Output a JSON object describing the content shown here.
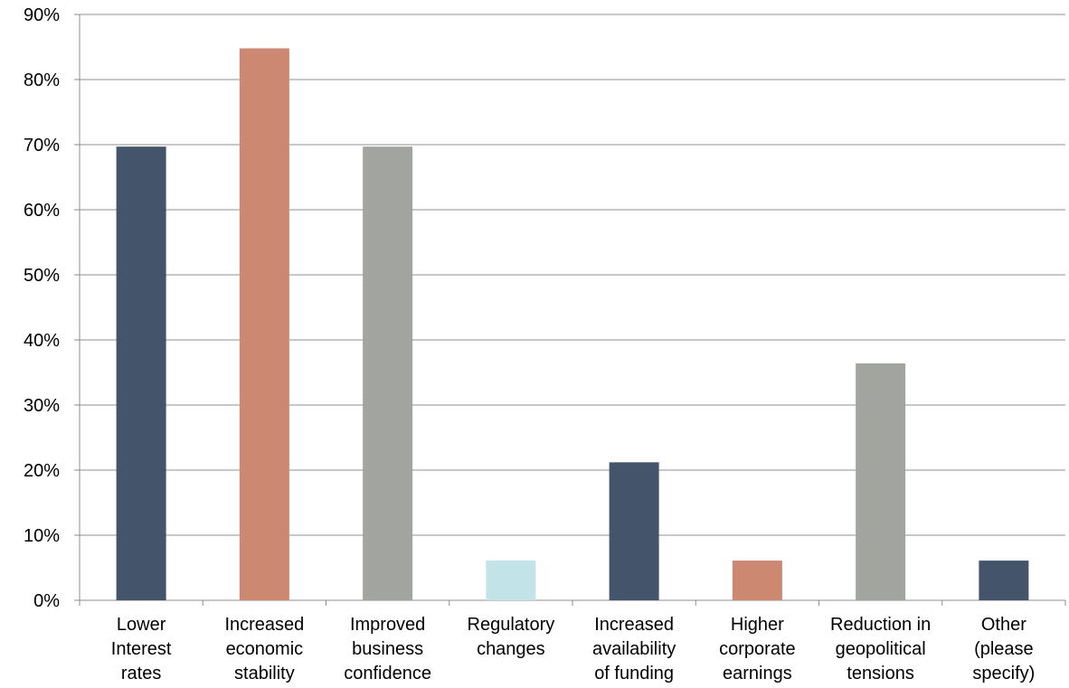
{
  "chart_data": {
    "type": "bar",
    "title": "",
    "xlabel": "",
    "ylabel": "",
    "categories": [
      [
        "Lower",
        "Interest",
        "rates"
      ],
      [
        "Increased",
        "economic",
        "stability"
      ],
      [
        "Improved",
        "business",
        "confidence"
      ],
      [
        "Regulatory",
        "changes"
      ],
      [
        "Increased",
        "availability",
        "of funding"
      ],
      [
        "Higher",
        "corporate",
        "earnings"
      ],
      [
        "Reduction in",
        "geopolitical",
        "tensions"
      ],
      [
        "Other",
        "(please",
        "specify)"
      ]
    ],
    "values": [
      69.7,
      84.8,
      69.7,
      6.1,
      21.2,
      6.1,
      36.4,
      6.1
    ],
    "bar_colors": [
      "#44546a",
      "#cc8870",
      "#a2a4a0",
      "#c2e3e8",
      "#44546a",
      "#cc8870",
      "#a2a4a0",
      "#44546a"
    ],
    "ylim": [
      0,
      90
    ],
    "yticks": [
      0,
      10,
      20,
      30,
      40,
      50,
      60,
      70,
      80,
      90
    ],
    "ytick_labels": [
      "0%",
      "10%",
      "20%",
      "30%",
      "40%",
      "50%",
      "60%",
      "70%",
      "80%",
      "90%"
    ],
    "grid": true,
    "legend": "none"
  }
}
